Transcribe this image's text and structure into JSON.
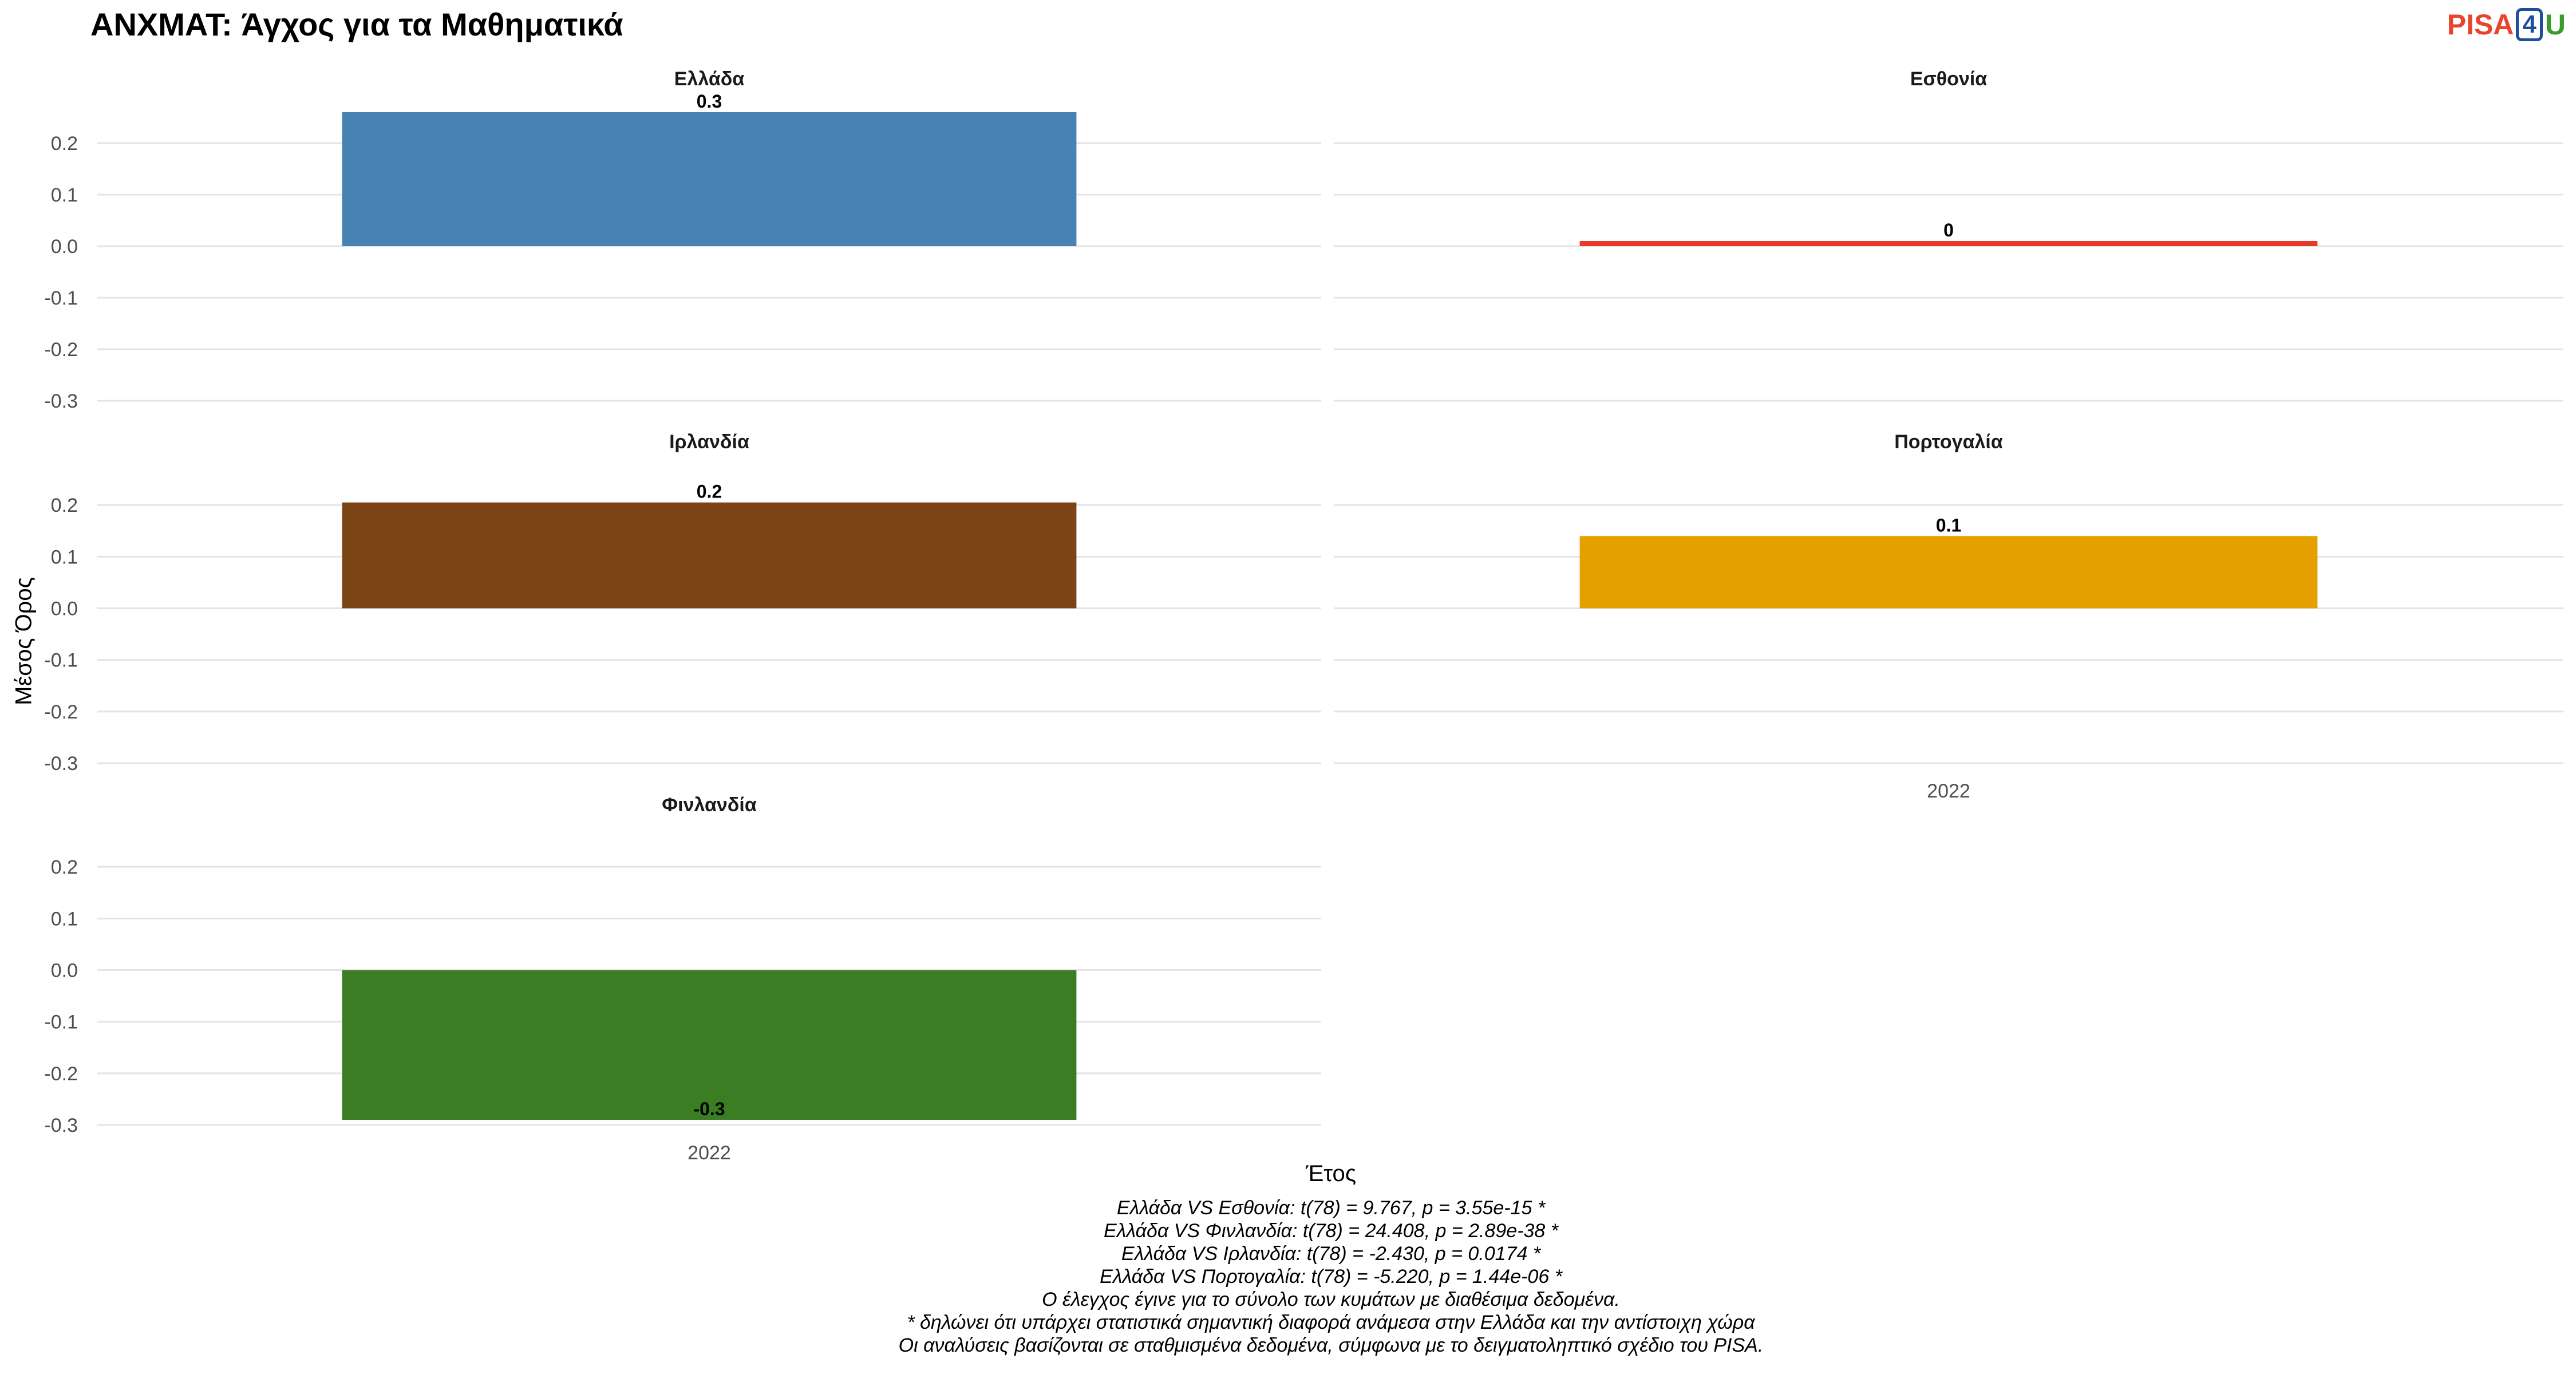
{
  "title": "ANXMAT: Άγχος για τα Μαθηματικά",
  "logo": {
    "part1": "PISA",
    "part2": "4",
    "part3": "U"
  },
  "colors": {
    "grid": "#e4e4e4",
    "tick_text": "#4d4d4d"
  },
  "chart_data": {
    "type": "bar",
    "title": "ANXMAT: Άγχος για τα Μαθηματικά",
    "xlabel": "Έτος",
    "ylabel": "Μέσος Όρος",
    "ylim": [
      -0.3,
      0.3
    ],
    "yticks": [
      0.2,
      0.1,
      0.0,
      -0.1,
      -0.2,
      -0.3
    ],
    "ytick_labels": [
      "0.2",
      "0.1",
      "0.0",
      "-0.1",
      "-0.2",
      "-0.3"
    ],
    "grid": true,
    "layout": "facets 3 rows x 2 columns",
    "panels": [
      {
        "name": "Ελλάδα",
        "category": "2022",
        "value": 0.26,
        "label": "0.3",
        "color": "#4682b4",
        "show_x_axis": false
      },
      {
        "name": "Εσθονία",
        "category": "2022",
        "value": 0.01,
        "label": "0",
        "color": "#e8392b",
        "show_x_axis": false
      },
      {
        "name": "Ιρλανδία",
        "category": "2022",
        "value": 0.205,
        "label": "0.2",
        "color": "#7b4515",
        "show_x_axis": false
      },
      {
        "name": "Πορτογαλία",
        "category": "2022",
        "value": 0.14,
        "label": "0.1",
        "color": "#e5a000",
        "show_x_axis": true
      },
      {
        "name": "Φινλανδία",
        "category": "2022",
        "value": -0.29,
        "label": "-0.3",
        "color": "#3a7d22",
        "show_x_axis": true
      }
    ]
  },
  "notes": [
    "Ελλάδα VS Εσθονία: t(78) = 9.767, p = 3.55e-15 *",
    "Ελλάδα VS Φινλανδία: t(78) = 24.408, p = 2.89e-38 *",
    "Ελλάδα VS Ιρλανδία: t(78) = -2.430, p = 0.0174 *",
    "Ελλάδα VS Πορτογαλία: t(78) = -5.220, p = 1.44e-06 *",
    "Ο έλεγχος έγινε για το σύνολο των κυμάτων με διαθέσιμα δεδομένα.",
    "* δηλώνει ότι υπάρχει στατιστικά σημαντική διαφορά ανάμεσα στην Ελλάδα και την αντίστοιχη χώρα",
    "Οι αναλύσεις βασίζονται σε σταθμισμένα δεδομένα, σύμφωνα με το δειγματοληπτικό σχέδιο του PISA."
  ]
}
